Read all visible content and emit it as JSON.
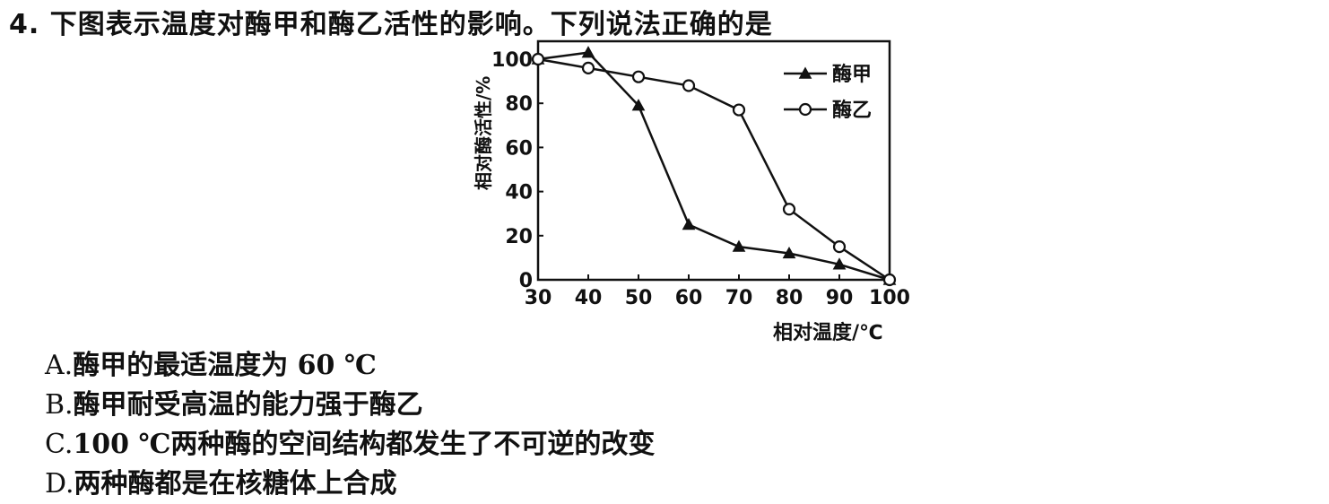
{
  "question": {
    "text": "4. 下图表示温度对酶甲和酶乙活性的影响。下列说法正确的是"
  },
  "chart_data": {
    "type": "line",
    "xlabel": "相对温度/℃",
    "ylabel": "相对酶活性/%",
    "xlim": [
      30,
      100
    ],
    "ylim": [
      0,
      100
    ],
    "x_ticks": [
      30,
      40,
      50,
      60,
      70,
      80,
      90,
      100
    ],
    "y_ticks": [
      0,
      20,
      40,
      60,
      80,
      100
    ],
    "legend_position": "top-right",
    "series": [
      {
        "name": "酶甲",
        "marker": "filled-triangle",
        "x": [
          30,
          40,
          50,
          60,
          70,
          80,
          90,
          100
        ],
        "values": [
          100,
          103,
          79,
          25,
          15,
          12,
          7,
          0
        ]
      },
      {
        "name": "酶乙",
        "marker": "open-circle",
        "x": [
          30,
          40,
          50,
          60,
          70,
          80,
          90,
          100
        ],
        "values": [
          100,
          96,
          92,
          88,
          77,
          32,
          15,
          0
        ]
      }
    ]
  },
  "options": [
    {
      "key": "A.",
      "text": "酶甲的最适温度为 60 ℃"
    },
    {
      "key": "B.",
      "text": "酶甲耐受高温的能力强于酶乙"
    },
    {
      "key": "C.",
      "text": "100 ℃两种酶的空间结构都发生了不可逆的改变"
    },
    {
      "key": "D.",
      "text": "两种酶都是在核糖体上合成"
    }
  ]
}
